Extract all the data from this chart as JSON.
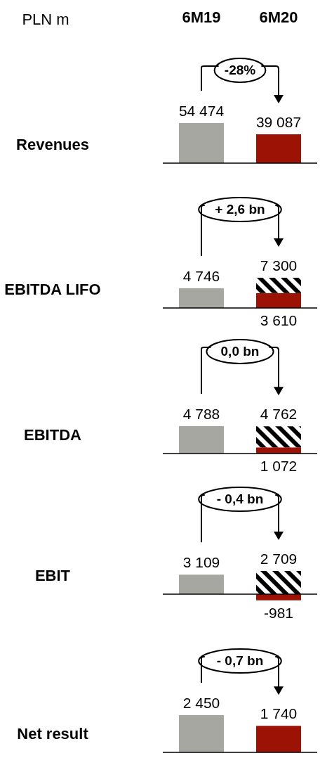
{
  "chart_data": [
    {
      "type": "bar",
      "title": "Revenues",
      "ylabel": "PLN m",
      "categories": [
        "6M19",
        "6M20"
      ],
      "values": [
        54474,
        39087
      ],
      "colors": [
        "#a7a7a2",
        "#9c1306"
      ],
      "value_labels": [
        "54 474",
        "39 087"
      ],
      "annotations": [
        "-28%"
      ],
      "tick_labels": "x"
    },
    {
      "type": "bar",
      "title": "EBITDA LIFO",
      "categories": [
        null,
        null
      ],
      "stacked": true,
      "series": [
        {
          "color": "#a7a7a2",
          "values": [
            4746,
            null
          ],
          "value_labels": [
            "4 746",
            null
          ]
        },
        {
          "color": "#9c1306",
          "values": [
            null,
            3610
          ],
          "value_labels": [
            null,
            "3 610"
          ]
        },
        {
          "color": "#000000",
          "values": [
            null,
            3690
          ]
        }
      ],
      "totals": [
        null,
        "7 300"
      ],
      "annotations": [
        "+ 2,6 bn"
      ],
      "tick_labels": false
    },
    {
      "type": "bar",
      "title": "EBITDA",
      "categories": [
        null,
        null
      ],
      "stacked": true,
      "series": [
        {
          "color": "#a7a7a2",
          "values": [
            4788,
            null
          ],
          "value_labels": [
            "4 788",
            null
          ]
        },
        {
          "color": "#9c1306",
          "values": [
            null,
            1072
          ],
          "value_labels": [
            null,
            "1 072"
          ]
        },
        {
          "color": "#000000",
          "values": [
            null,
            3690
          ]
        }
      ],
      "totals": [
        null,
        "4 762"
      ],
      "annotations": [
        "0,0 bn"
      ],
      "tick_labels": false
    },
    {
      "type": "bar",
      "title": "EBIT",
      "categories": [
        null,
        null
      ],
      "stacked": true,
      "series": [
        {
          "color": "#a7a7a2",
          "values": [
            3109,
            null
          ],
          "value_labels": [
            "3 109",
            null
          ]
        },
        {
          "color": "#9c1306",
          "values": [
            null,
            -981
          ],
          "value_labels": [
            null,
            "-981"
          ]
        },
        {
          "color": "#000000",
          "values": [
            null,
            3690
          ]
        }
      ],
      "totals": [
        null,
        "2 709"
      ],
      "annotations": [
        "- 0,4 bn"
      ],
      "tick_labels": false
    },
    {
      "type": "bar",
      "title": "Net result",
      "categories": [
        null,
        null
      ],
      "values": [
        2450,
        1740
      ],
      "colors": [
        "#a7a7a2",
        "#9c1306"
      ],
      "value_labels": [
        "2 450",
        "1 740"
      ],
      "annotations": [
        "- 0,7 bn"
      ],
      "tick_labels": false
    }
  ]
}
